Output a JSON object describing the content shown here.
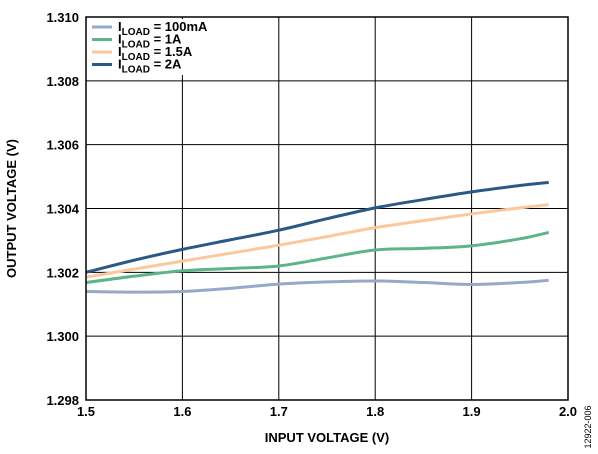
{
  "chart_data": {
    "type": "line",
    "xlabel": "INPUT VOLTAGE (V)",
    "ylabel": "OUTPUT VOLTAGE (V)",
    "xlim": [
      1.5,
      2.0
    ],
    "ylim": [
      1.298,
      1.31
    ],
    "x_ticks": [
      "1.5",
      "1.6",
      "1.7",
      "1.8",
      "1.9",
      "2.0"
    ],
    "y_ticks": [
      "1.298",
      "1.300",
      "1.302",
      "1.304",
      "1.306",
      "1.308",
      "1.310"
    ],
    "grid": true,
    "legend_position": "top-left",
    "figure_id": "12922-006",
    "series": [
      {
        "name_main": "I",
        "name_sub": "LOAD",
        "name_rest": " = 100mA",
        "color": "#97a9c9",
        "x": [
          1.5,
          1.55,
          1.6,
          1.65,
          1.7,
          1.75,
          1.8,
          1.85,
          1.9,
          1.95,
          1.98
        ],
        "y": [
          1.3014,
          1.30138,
          1.3014,
          1.3015,
          1.30163,
          1.3017,
          1.30173,
          1.30168,
          1.30162,
          1.30168,
          1.30175
        ]
      },
      {
        "name_main": "I",
        "name_sub": "LOAD",
        "name_rest": " = 1A",
        "color": "#5db38a",
        "x": [
          1.5,
          1.55,
          1.6,
          1.65,
          1.7,
          1.75,
          1.8,
          1.85,
          1.9,
          1.95,
          1.98
        ],
        "y": [
          1.30168,
          1.30188,
          1.30205,
          1.30212,
          1.3022,
          1.30245,
          1.3027,
          1.30275,
          1.30283,
          1.30305,
          1.30325
        ]
      },
      {
        "name_main": "I",
        "name_sub": "LOAD",
        "name_rest": " = 1.5A",
        "color": "#fbc89e",
        "x": [
          1.5,
          1.55,
          1.6,
          1.65,
          1.7,
          1.75,
          1.8,
          1.85,
          1.9,
          1.95,
          1.98
        ],
        "y": [
          1.30185,
          1.3021,
          1.30235,
          1.3026,
          1.30285,
          1.30312,
          1.3034,
          1.30362,
          1.30383,
          1.30402,
          1.30412
        ]
      },
      {
        "name_main": "I",
        "name_sub": "LOAD",
        "name_rest": " = 2A",
        "color": "#2b5987",
        "x": [
          1.5,
          1.55,
          1.6,
          1.65,
          1.7,
          1.75,
          1.8,
          1.85,
          1.9,
          1.95,
          1.98
        ],
        "y": [
          1.302,
          1.30238,
          1.30272,
          1.30302,
          1.30332,
          1.30368,
          1.30402,
          1.30428,
          1.30452,
          1.30472,
          1.30482
        ]
      }
    ]
  }
}
